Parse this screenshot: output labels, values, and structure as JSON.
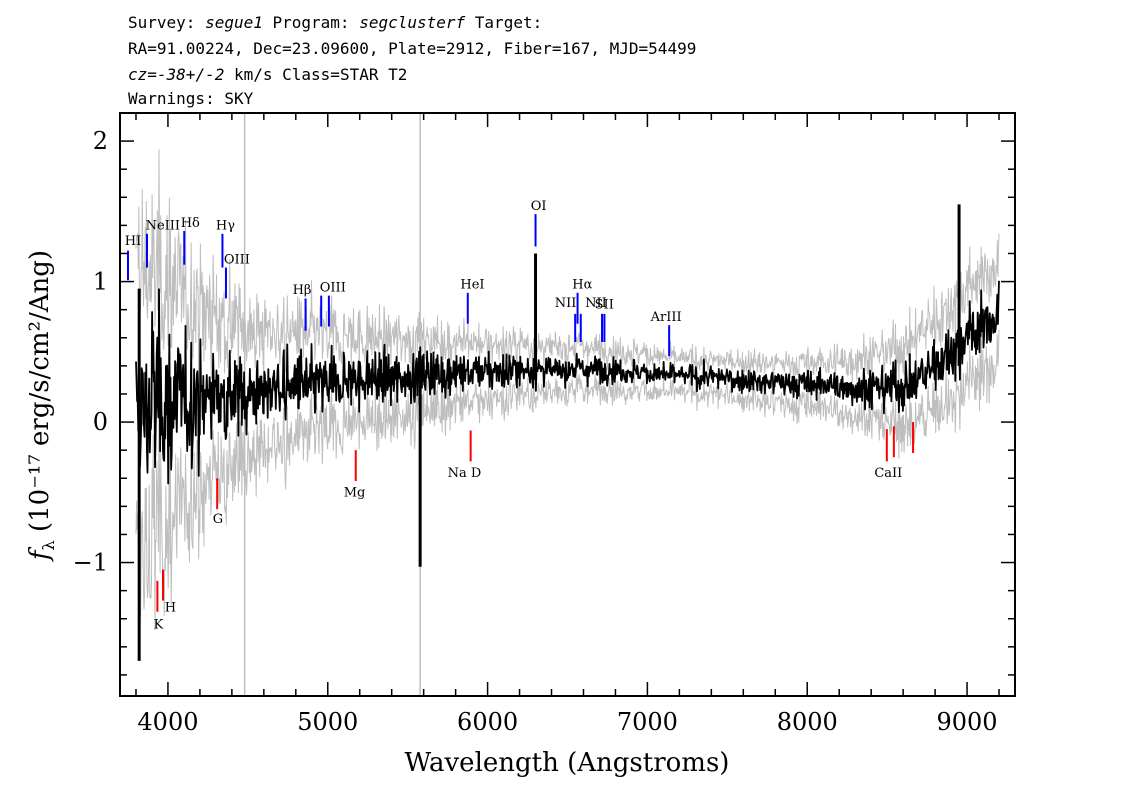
{
  "header": {
    "survey_prefix": "Survey: ",
    "survey": "segue1",
    "program_prefix": " Program: ",
    "program": "segclusterf",
    "target_suffix": " Target:",
    "line2": "RA=91.00224, Dec=23.09600, Plate=2912, Fiber=167, MJD=54499",
    "cz_sym": "cz",
    "cz_eq": "=",
    "cz_val": "-38+/-2",
    "cz_rest": " km/s Class=STAR T2",
    "line4": "Warnings: SKY"
  },
  "chart_data": {
    "type": "line",
    "title": "",
    "xlabel": "Wavelength (Angstroms)",
    "ylabel_sym": "f",
    "ylabel_sub": "λ",
    "ylabel_text": " (10⁻¹⁷ erg/s/cm²/Ang)",
    "xlim": [
      3700,
      9300
    ],
    "ylim": [
      -1.95,
      2.2
    ],
    "x_ticks": [
      4000,
      5000,
      6000,
      7000,
      8000,
      9000
    ],
    "y_ticks": [
      -1,
      0,
      1,
      2
    ],
    "x_tick_labels": [
      "4000",
      "5000",
      "6000",
      "7000",
      "8000",
      "9000"
    ],
    "y_tick_labels": [
      "−1",
      "0",
      "1",
      "2"
    ],
    "grid": false,
    "legend": "none",
    "series": [
      {
        "role": "error",
        "color": "#bebebe",
        "x": [
          3800,
          3850,
          3900,
          4000,
          4100,
          4200,
          4300,
          4400,
          4500,
          4600,
          4700,
          4800,
          4900,
          5000,
          5200,
          5400,
          5600,
          5800,
          6000,
          6200,
          6400,
          6600,
          6800,
          7000,
          7200,
          7400,
          7600,
          7800,
          8000,
          8200,
          8400,
          8600,
          8800,
          9000,
          9200
        ],
        "values": [
          1.0,
          1.0,
          0.95,
          0.85,
          0.75,
          0.65,
          0.55,
          0.5,
          0.45,
          0.42,
          0.4,
          0.38,
          0.35,
          0.33,
          0.3,
          0.28,
          0.25,
          0.22,
          0.2,
          0.18,
          0.16,
          0.15,
          0.14,
          0.13,
          0.12,
          0.12,
          0.13,
          0.14,
          0.15,
          0.18,
          0.22,
          0.28,
          0.32,
          0.35,
          0.35
        ]
      },
      {
        "role": "flux",
        "color": "#000000",
        "x": [
          3800,
          3850,
          3900,
          4000,
          4100,
          4200,
          4300,
          4400,
          4500,
          4600,
          4700,
          4800,
          4900,
          5000,
          5200,
          5400,
          5600,
          5800,
          6000,
          6200,
          6400,
          6600,
          6800,
          7000,
          7200,
          7400,
          7600,
          7800,
          8000,
          8200,
          8400,
          8600,
          8800,
          9000,
          9200
        ],
        "values": [
          0.0,
          0.1,
          0.12,
          0.15,
          0.15,
          0.18,
          0.2,
          0.2,
          0.22,
          0.22,
          0.24,
          0.25,
          0.26,
          0.27,
          0.3,
          0.32,
          0.34,
          0.35,
          0.36,
          0.37,
          0.37,
          0.38,
          0.37,
          0.35,
          0.33,
          0.32,
          0.3,
          0.28,
          0.27,
          0.25,
          0.25,
          0.25,
          0.4,
          0.6,
          0.75
        ]
      }
    ],
    "spikes": [
      {
        "x": 3820,
        "y1": -1.7,
        "y2": 0.95
      },
      {
        "x": 5578,
        "y1": -1.03,
        "y2": 0.3
      },
      {
        "x": 6300,
        "y1": 0.3,
        "y2": 1.2
      },
      {
        "x": 8950,
        "y1": 0.4,
        "y2": 1.55
      }
    ],
    "sky_lines": [
      {
        "x": 4480,
        "y1": -1.95,
        "y2": 2.2
      },
      {
        "x": 5578,
        "y1": -1.95,
        "y2": 2.2
      }
    ],
    "emission_lines": [
      {
        "label": "HI",
        "x": 3750,
        "y1": 1.01,
        "y2": 1.22
      },
      {
        "label": "NeIII",
        "x": 3869,
        "y1": 1.1,
        "y2": 1.34
      },
      {
        "label": "Hδ",
        "x": 4102,
        "y1": 1.12,
        "y2": 1.36
      },
      {
        "label": "Hγ",
        "x": 4341,
        "y1": 1.1,
        "y2": 1.34
      },
      {
        "label": "OIII",
        "x": 4363,
        "y1": 0.88,
        "y2": 1.1
      },
      {
        "label": "Hβ",
        "x": 4861,
        "y1": 0.65,
        "y2": 0.88
      },
      {
        "label": "OIII",
        "x": 4959,
        "y1": 0.68,
        "y2": 0.9
      },
      {
        "label": "OIII",
        "x": 5007,
        "y1": 0.68,
        "y2": 0.9
      },
      {
        "label": "HeI",
        "x": 5876,
        "y1": 0.7,
        "y2": 0.92
      },
      {
        "label": "OI",
        "x": 6300,
        "y1": 1.25,
        "y2": 1.48
      },
      {
        "label": "NII",
        "x": 6548,
        "y1": 0.57,
        "y2": 0.77
      },
      {
        "label": "Hα",
        "x": 6563,
        "y1": 0.7,
        "y2": 0.92
      },
      {
        "label": "NII",
        "x": 6583,
        "y1": 0.57,
        "y2": 0.77
      },
      {
        "label": "SII",
        "x": 6716,
        "y1": 0.57,
        "y2": 0.77
      },
      {
        "label": "SII",
        "x": 6731,
        "y1": 0.57,
        "y2": 0.77
      },
      {
        "label": "ArIII",
        "x": 7136,
        "y1": 0.47,
        "y2": 0.69
      }
    ],
    "absorption_lines": [
      {
        "label": "K",
        "x": 3934,
        "y1": -1.35,
        "y2": -1.13
      },
      {
        "label": "H",
        "x": 3969,
        "y1": -1.27,
        "y2": -1.05
      },
      {
        "label": "G",
        "x": 4308,
        "y1": -0.62,
        "y2": -0.4
      },
      {
        "label": "Mg",
        "x": 5175,
        "y1": -0.42,
        "y2": -0.2
      },
      {
        "label": "Na D",
        "x": 5894,
        "y1": -0.28,
        "y2": -0.06
      },
      {
        "label": "CaII",
        "x": 8498,
        "y1": -0.28,
        "y2": -0.05
      },
      {
        "label": "CaII",
        "x": 8542,
        "y1": -0.25,
        "y2": -0.03
      },
      {
        "label": "CaII",
        "x": 8662,
        "y1": -0.22,
        "y2": 0.0
      }
    ],
    "line_label_text": [
      {
        "text": "HI",
        "x": 3730,
        "y": 1.26
      },
      {
        "text": "NeIII",
        "x": 3860,
        "y": 1.37
      },
      {
        "text": "Hδ",
        "x": 4080,
        "y": 1.39
      },
      {
        "text": "Hγ",
        "x": 4300,
        "y": 1.37
      },
      {
        "text": "OIII",
        "x": 4350,
        "y": 1.13
      },
      {
        "text": "Hβ",
        "x": 4780,
        "y": 0.91
      },
      {
        "text": "OIII",
        "x": 4950,
        "y": 0.93
      },
      {
        "text": "HeI",
        "x": 5830,
        "y": 0.95
      },
      {
        "text": "OI",
        "x": 6270,
        "y": 1.51
      },
      {
        "text": "NII",
        "x": 6420,
        "y": 0.82
      },
      {
        "text": "Hα",
        "x": 6530,
        "y": 0.95
      },
      {
        "text": "NII",
        "x": 6610,
        "y": 0.82
      },
      {
        "text": "SII",
        "x": 6670,
        "y": 0.81
      },
      {
        "text": "ArIII",
        "x": 7020,
        "y": 0.72
      },
      {
        "text": "K",
        "x": 3910,
        "y": -1.47
      },
      {
        "text": "H",
        "x": 3980,
        "y": -1.35
      },
      {
        "text": "G",
        "x": 4280,
        "y": -0.72
      },
      {
        "text": "Mg",
        "x": 5100,
        "y": -0.53
      },
      {
        "text": "Na  D",
        "x": 5750,
        "y": -0.39
      },
      {
        "text": "CaII",
        "x": 8420,
        "y": -0.39
      }
    ]
  },
  "colors": {
    "flux": "#000000",
    "error": "#bebebe",
    "emission": "#0000ff",
    "absorption": "#ff0000",
    "axes": "#000000"
  }
}
